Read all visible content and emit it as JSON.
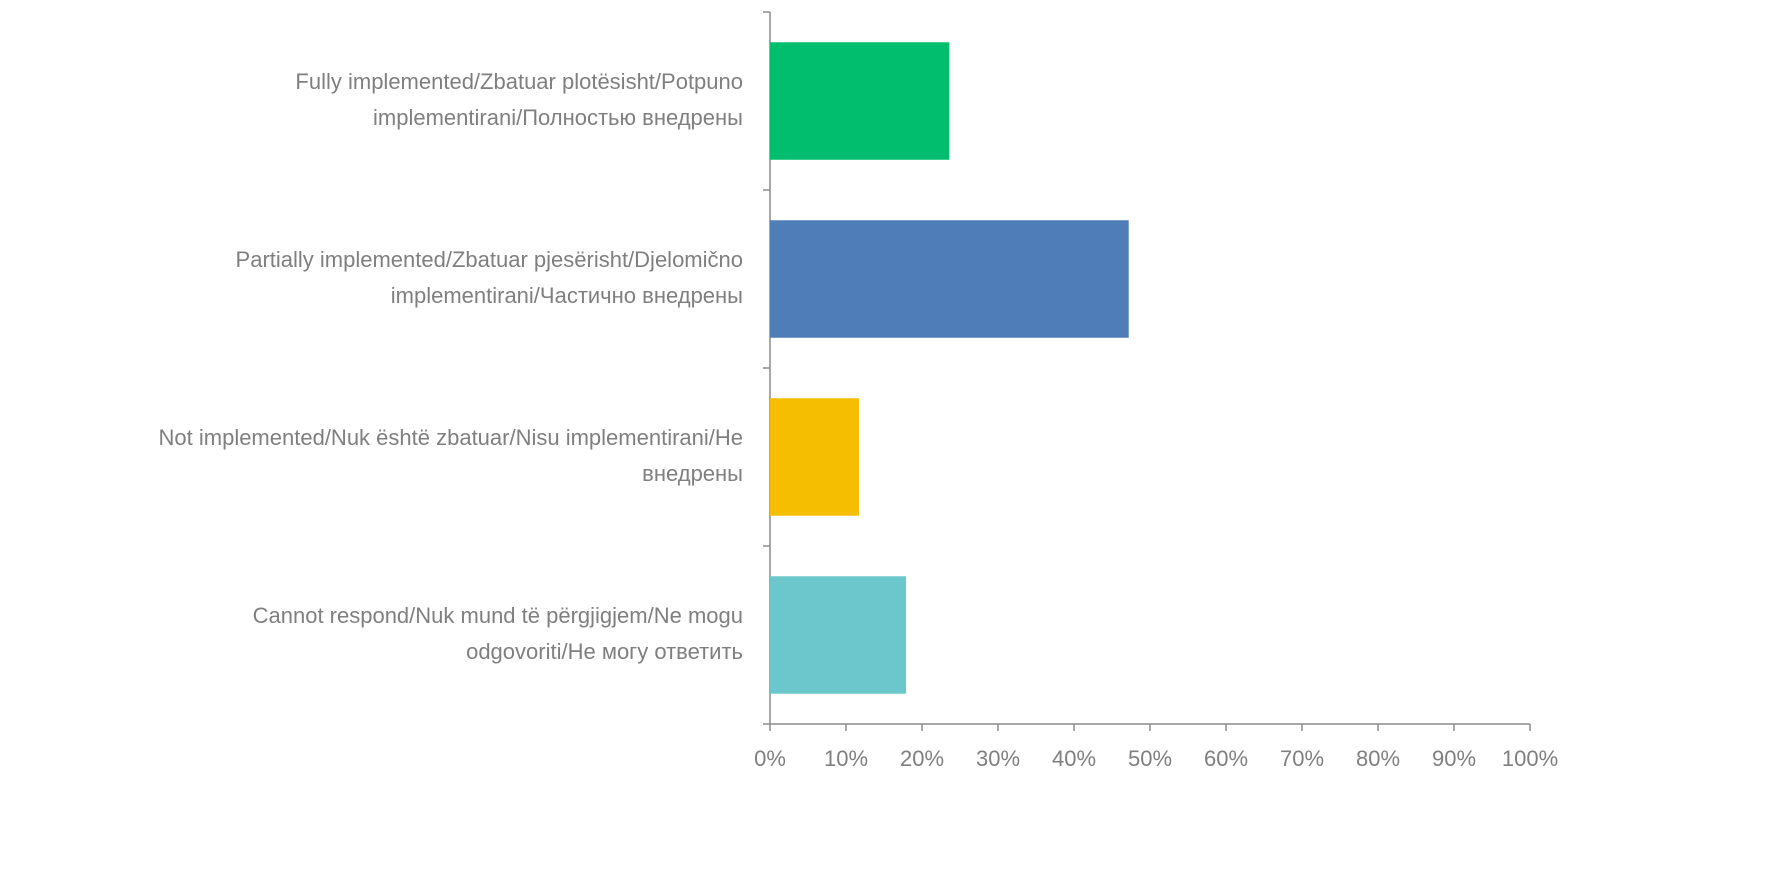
{
  "chart_data": {
    "type": "hbar",
    "categories": [
      [
        "Fully implemented/Zbatuar plotësisht/Potpuno",
        "implementirani/Полностью внедрены"
      ],
      [
        "Partially implemented/Zbatuar pjesërisht/Djelomično",
        "implementirani/Частично внедрены"
      ],
      [
        "Not implemented/Nuk është zbatuar/Nisu implementirani/Не",
        "внедрены"
      ],
      [
        "Cannot respond/Nuk mund të përgjigjem/Ne mogu",
        "odgovoriti/Не могу ответить"
      ]
    ],
    "values": [
      23.6,
      47.2,
      11.7,
      17.9
    ],
    "colors": [
      "#00be6e",
      "#4f7db8",
      "#f6be00",
      "#6bc7cc"
    ],
    "xlim": [
      0,
      100
    ],
    "xticks": [
      {
        "value": 0,
        "label": "0%"
      },
      {
        "value": 10,
        "label": "10%"
      },
      {
        "value": 20,
        "label": "20%"
      },
      {
        "value": 30,
        "label": "30%"
      },
      {
        "value": 40,
        "label": "40%"
      },
      {
        "value": 50,
        "label": "50%"
      },
      {
        "value": 60,
        "label": "60%"
      },
      {
        "value": 70,
        "label": "70%"
      },
      {
        "value": 80,
        "label": "80%"
      },
      {
        "value": 90,
        "label": "90%"
      },
      {
        "value": 100,
        "label": "100%"
      }
    ],
    "grid": false
  }
}
